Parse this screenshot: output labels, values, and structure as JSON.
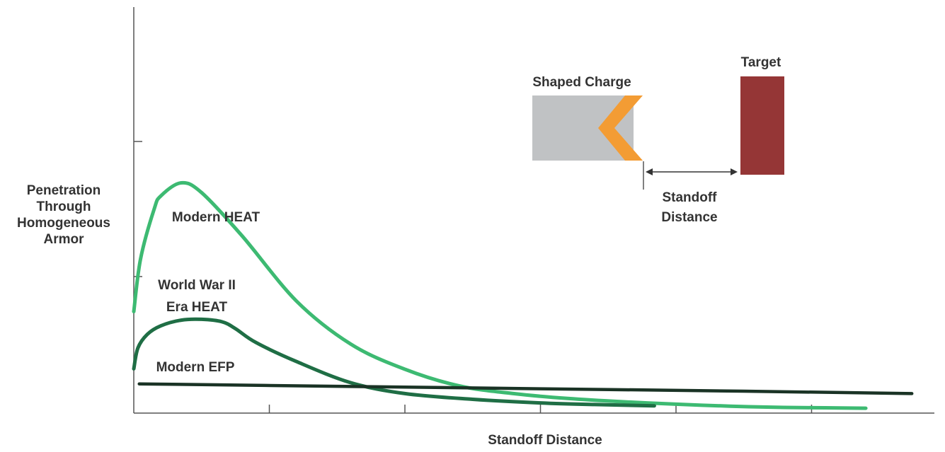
{
  "chart_data": {
    "type": "line",
    "ylabel_lines": [
      "Penetration",
      "Through",
      "Homogeneous",
      "Armor"
    ],
    "xlabel": "Standoff Distance",
    "x_tick_count": 6,
    "y_tick_count": 2,
    "series": [
      {
        "name": "Modern HEAT",
        "color": "#3dba72",
        "points": [
          [
            0,
            0.25
          ],
          [
            0.05,
            0.38
          ],
          [
            0.15,
            0.502
          ],
          [
            0.2,
            0.535
          ],
          [
            0.35,
            0.567
          ],
          [
            0.5,
            0.543
          ],
          [
            0.8,
            0.436
          ],
          [
            1.2,
            0.276
          ],
          [
            1.6,
            0.17
          ],
          [
            2.0,
            0.108
          ],
          [
            2.4,
            0.067
          ],
          [
            2.8,
            0.048
          ],
          [
            3.2,
            0.036
          ],
          [
            3.6,
            0.028
          ],
          [
            4.0,
            0.022
          ],
          [
            4.4,
            0.017
          ],
          [
            4.8,
            0.014
          ],
          [
            5.1,
            0.013
          ],
          [
            5.4,
            0.012
          ]
        ]
      },
      {
        "name": "World War II Era HEAT",
        "lines": [
          "World War II",
          "Era HEAT"
        ],
        "color": "#1f6e45",
        "points": [
          [
            0,
            0.109
          ],
          [
            0.03,
            0.16
          ],
          [
            0.1,
            0.194
          ],
          [
            0.2,
            0.215
          ],
          [
            0.35,
            0.229
          ],
          [
            0.5,
            0.231
          ],
          [
            0.65,
            0.225
          ],
          [
            0.75,
            0.208
          ],
          [
            0.9,
            0.174
          ],
          [
            1.2,
            0.127
          ],
          [
            1.6,
            0.075
          ],
          [
            2.0,
            0.048
          ],
          [
            2.5,
            0.034
          ],
          [
            3.0,
            0.025
          ],
          [
            3.4,
            0.021
          ],
          [
            3.84,
            0.018
          ]
        ]
      },
      {
        "name": "Modern EFP",
        "color": "#1a3325",
        "points": [
          [
            0.04,
            0.072
          ],
          [
            1.5,
            0.066
          ],
          [
            3.0,
            0.06
          ],
          [
            4.5,
            0.054
          ],
          [
            5.74,
            0.048
          ]
        ]
      }
    ]
  },
  "inset": {
    "shaped_charge_label": "Shaped Charge",
    "target_label": "Target",
    "standoff_lines": [
      "Standoff",
      "Distance"
    ],
    "colors": {
      "charge_body": "#c0c2c4",
      "liner": "#f39c34",
      "target": "#953636",
      "arrow": "#333333"
    }
  },
  "axis_color": "#555555"
}
